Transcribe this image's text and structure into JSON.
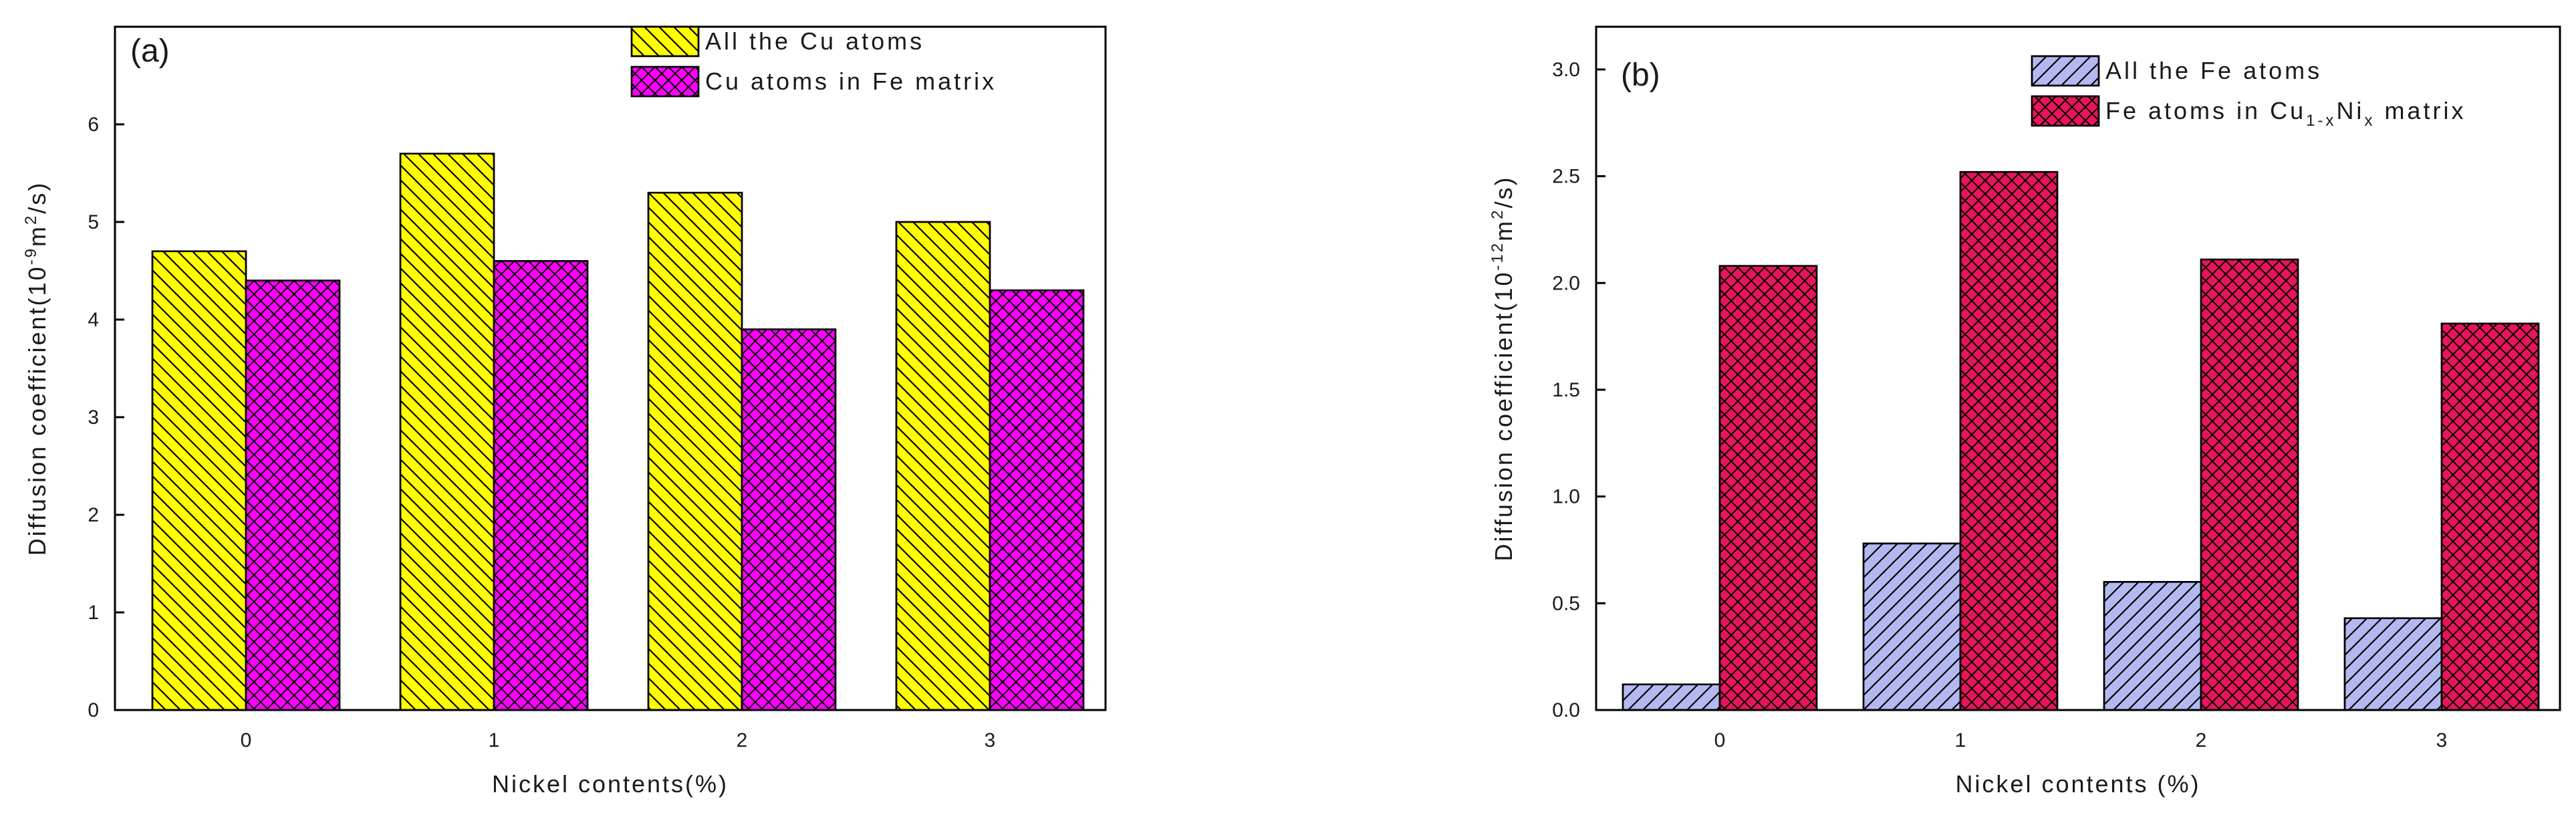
{
  "chart_data": [
    {
      "type": "bar",
      "panel_label": "(a)",
      "categories": [
        "0",
        "1",
        "2",
        "3"
      ],
      "series": [
        {
          "name": "All the Cu atoms",
          "values": [
            4.7,
            5.7,
            5.3,
            5.0
          ],
          "color": "#ffff00",
          "pattern": "backslash"
        },
        {
          "name": "Cu atoms in Fe matrix",
          "values": [
            4.4,
            4.6,
            3.9,
            4.3
          ],
          "color": "#ff00ff",
          "pattern": "crosshatch"
        }
      ],
      "xlabel": "Nickel contents(%)",
      "ylabel": "Diffusion coefficient(10-9m2/s)",
      "ylabel_parts": {
        "base": "Diffusion coefficient(10",
        "exp": "-9",
        "unit_base": "m",
        "unit_exp": "2",
        "tail": "/s)"
      },
      "ylim": [
        0,
        7
      ],
      "yticks": [
        "0",
        "1",
        "2",
        "3",
        "4",
        "5",
        "6"
      ],
      "legend_position": "top-right"
    },
    {
      "type": "bar",
      "panel_label": "(b)",
      "categories": [
        "0",
        "1",
        "2",
        "3"
      ],
      "series": [
        {
          "name": "All the Fe atoms",
          "values": [
            0.12,
            0.78,
            0.6,
            0.43
          ],
          "color": "#b3b9f0",
          "pattern": "slash"
        },
        {
          "name": "Fe atoms in Cu1-xNix matrix",
          "values": [
            2.08,
            2.52,
            2.11,
            1.81
          ],
          "color": "#e8145c",
          "pattern": "crosshatch"
        }
      ],
      "legend_parts": {
        "prefix": "Fe atoms in Cu",
        "sub1": "1-x",
        "mid": "Ni",
        "sub2": "x",
        "suffix": " matrix"
      },
      "xlabel": "Nickel contents (%)",
      "ylabel": "Diffusion coefficient(10-12m2/s)",
      "ylabel_parts": {
        "base": "Diffusion coefficient(10",
        "exp": "-12",
        "unit_base": "m",
        "unit_exp": "2",
        "tail": "/s)"
      },
      "ylim": [
        0,
        3.2
      ],
      "yticks": [
        "0.0",
        "0.5",
        "1.0",
        "1.5",
        "2.0",
        "2.5",
        "3.0"
      ],
      "legend_position": "top-right"
    }
  ]
}
